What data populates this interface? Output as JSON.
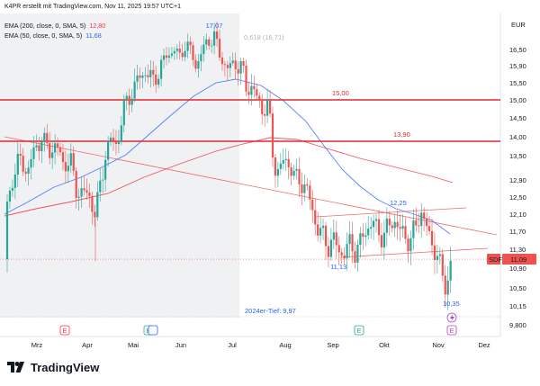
{
  "header": {
    "attribution": "K4PR erstellt mit TradingView.com, Nov 11, 2025 19:57 UTC+1",
    "currency": "EUR"
  },
  "indicators": [
    {
      "label": "EMA (200, close, 0, SMA, 5)",
      "value": "12,80",
      "color": "#f23645"
    },
    {
      "label": "EMA (50, close, 0, SMA, 5)",
      "value": "11,68",
      "color": "#2962ff"
    }
  ],
  "price_axis": {
    "ticks": [
      "16,50",
      "15,90",
      "15,50",
      "15,00",
      "14,50",
      "14,00",
      "13,50",
      "12,90",
      "12,50",
      "12,10",
      "11,70",
      "11,30",
      "10,90",
      "10,50",
      "10,15",
      "9,800"
    ]
  },
  "time_axis": {
    "ticks": [
      "Mrz",
      "Apr",
      "Mai",
      "Jun",
      "Jul",
      "Aug",
      "Sep",
      "Okt",
      "Nov",
      "Dez"
    ]
  },
  "annotations": {
    "high": "17,07",
    "fib": "0,618 (16,71)",
    "level_upper": "15,00",
    "level_lower": "13,90",
    "range_high": "12,25",
    "range_low": "11,13",
    "recent_low": "10,35",
    "year_low": "2024er-Tief: 9,97"
  },
  "current_price": {
    "symbol": "SDF",
    "value": "11,09"
  },
  "event_markers": [
    "E",
    "E",
    "E",
    "E"
  ],
  "brand": {
    "name": "TradingView",
    "logo": "tradingview-logo-icon"
  },
  "colors": {
    "up": "#26a69a",
    "down": "#ef5350",
    "ema200": "#f23645",
    "ema50": "#2962ff",
    "level": "#e0282e",
    "shade": "#f0f1f3"
  },
  "chart_data": {
    "type": "candlestick",
    "x_axis": [
      "Mrz",
      "Apr",
      "Mai",
      "Jun",
      "Jul",
      "Aug",
      "Sep",
      "Okt",
      "Nov",
      "Dez"
    ],
    "y_range": [
      9.8,
      16.5
    ],
    "close_path": [
      {
        "month": "Mrz",
        "price": 13.5
      },
      {
        "month": "Apr",
        "price": 12.6
      },
      {
        "month": "Mai",
        "price": 15.6
      },
      {
        "month": "Jun",
        "price": 16.7
      },
      {
        "month": "Jul",
        "price": 15.0
      },
      {
        "month": "Aug",
        "price": 13.1
      },
      {
        "month": "Sep",
        "price": 11.2
      },
      {
        "month": "Okt",
        "price": 11.9
      },
      {
        "month": "Nov",
        "price": 11.09
      }
    ]
  }
}
